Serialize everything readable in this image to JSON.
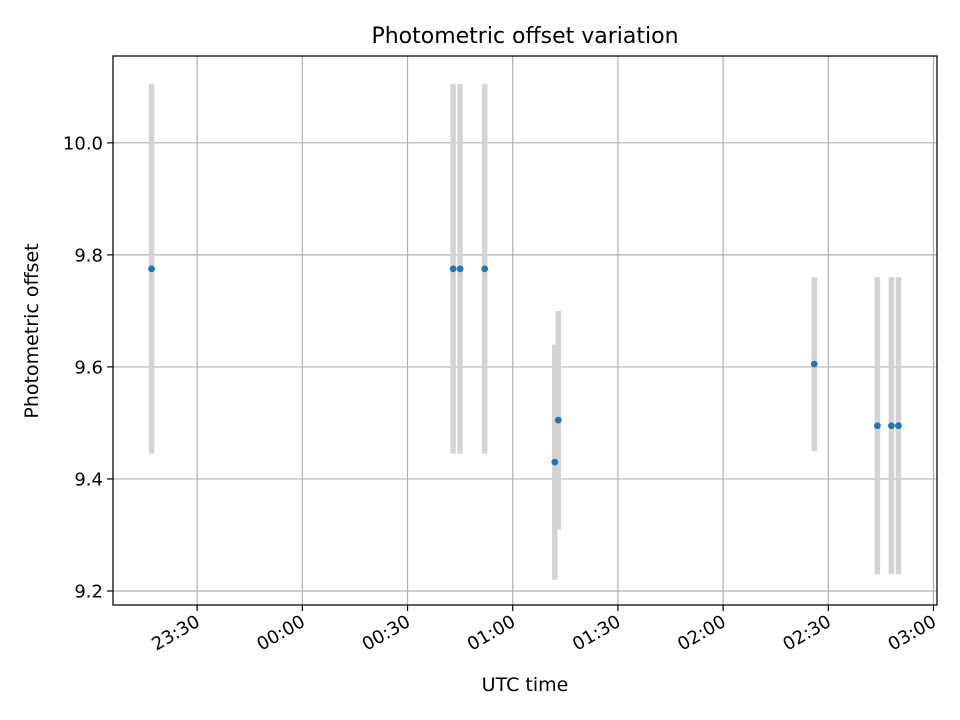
{
  "chart_data": {
    "type": "scatter",
    "title": "Photometric offset variation",
    "xlabel": "UTC time",
    "ylabel": "Photometric offset",
    "x_axis": {
      "kind": "time",
      "range": [
        "23:06",
        "03:01"
      ],
      "ticks": [
        "23:30",
        "00:00",
        "00:30",
        "01:00",
        "01:30",
        "02:00",
        "02:30",
        "03:00"
      ]
    },
    "y_axis": {
      "range": [
        9.175,
        10.155
      ],
      "ticks": [
        "9.2",
        "9.4",
        "9.6",
        "9.8",
        "10.0"
      ],
      "tick_values": [
        9.2,
        9.4,
        9.6,
        9.8,
        10.0
      ]
    },
    "grid": true,
    "series": [
      {
        "marker_color": "#1f77b4",
        "errorbar_color": "#d3d3d3",
        "points": [
          {
            "x": "23:17",
            "y": 9.775,
            "yerr": 0.33
          },
          {
            "x": "00:43",
            "y": 9.775,
            "yerr": 0.33
          },
          {
            "x": "00:45",
            "y": 9.775,
            "yerr": 0.33
          },
          {
            "x": "00:52",
            "y": 9.775,
            "yerr": 0.33
          },
          {
            "x": "01:12",
            "y": 9.43,
            "yerr": 0.21
          },
          {
            "x": "01:13",
            "y": 9.505,
            "yerr": 0.195
          },
          {
            "x": "02:26",
            "y": 9.605,
            "yerr": 0.155
          },
          {
            "x": "02:44",
            "y": 9.495,
            "yerr": 0.265
          },
          {
            "x": "02:48",
            "y": 9.495,
            "yerr": 0.265
          },
          {
            "x": "02:50",
            "y": 9.495,
            "yerr": 0.265
          }
        ]
      }
    ]
  }
}
